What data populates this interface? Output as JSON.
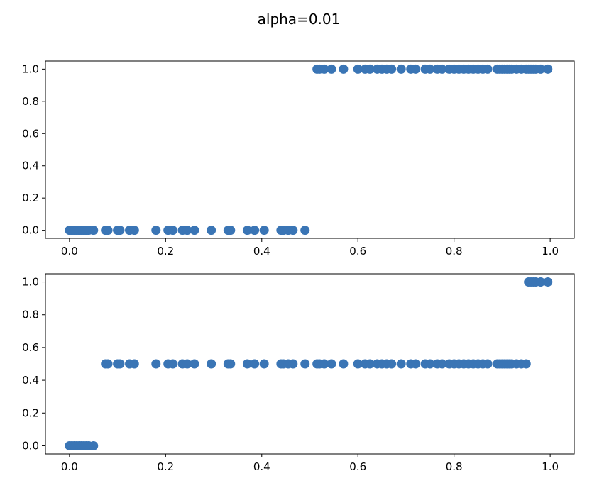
{
  "figure": {
    "suptitle": "alpha=0.01"
  },
  "chart_data": [
    {
      "type": "scatter",
      "title": "",
      "xlabel": "",
      "ylabel": "",
      "xlim": [
        -0.05,
        1.05
      ],
      "ylim": [
        -0.05,
        1.05
      ],
      "xticks": [
        0.0,
        0.2,
        0.4,
        0.6,
        0.8,
        1.0
      ],
      "xtick_labels": [
        "0.0",
        "0.2",
        "0.4",
        "0.6",
        "0.8",
        "1.0"
      ],
      "yticks": [
        0.0,
        0.2,
        0.4,
        0.6,
        0.8,
        1.0
      ],
      "ytick_labels": [
        "0.0",
        "0.2",
        "0.4",
        "0.6",
        "0.8",
        "1.0"
      ],
      "grid": false,
      "marker_color": "#3a75b5",
      "series": [
        {
          "x": [
            0.0,
            0.005,
            0.01,
            0.015,
            0.02,
            0.025,
            0.03,
            0.035,
            0.04,
            0.05,
            0.075,
            0.08,
            0.1,
            0.105,
            0.125,
            0.135,
            0.18,
            0.205,
            0.215,
            0.235,
            0.245,
            0.26,
            0.295,
            0.33,
            0.335,
            0.37,
            0.385,
            0.405,
            0.44,
            0.445,
            0.455,
            0.465,
            0.49,
            0.515,
            0.52,
            0.53,
            0.545,
            0.57,
            0.6,
            0.615,
            0.625,
            0.64,
            0.65,
            0.66,
            0.67,
            0.69,
            0.71,
            0.72,
            0.74,
            0.75,
            0.765,
            0.775,
            0.79,
            0.8,
            0.81,
            0.82,
            0.83,
            0.84,
            0.85,
            0.86,
            0.87,
            0.89,
            0.895,
            0.9,
            0.905,
            0.91,
            0.915,
            0.92,
            0.93,
            0.94,
            0.95,
            0.955,
            0.96,
            0.965,
            0.97,
            0.98,
            0.995
          ],
          "y": [
            0,
            0,
            0,
            0,
            0,
            0,
            0,
            0,
            0,
            0,
            0,
            0,
            0,
            0,
            0,
            0,
            0,
            0,
            0,
            0,
            0,
            0,
            0,
            0,
            0,
            0,
            0,
            0,
            0,
            0,
            0,
            0,
            0,
            1,
            1,
            1,
            1,
            1,
            1,
            1,
            1,
            1,
            1,
            1,
            1,
            1,
            1,
            1,
            1,
            1,
            1,
            1,
            1,
            1,
            1,
            1,
            1,
            1,
            1,
            1,
            1,
            1,
            1,
            1,
            1,
            1,
            1,
            1,
            1,
            1,
            1,
            1,
            1,
            1,
            1,
            1,
            1
          ]
        }
      ]
    },
    {
      "type": "scatter",
      "title": "",
      "xlabel": "",
      "ylabel": "",
      "xlim": [
        -0.05,
        1.05
      ],
      "ylim": [
        -0.05,
        1.05
      ],
      "xticks": [
        0.0,
        0.2,
        0.4,
        0.6,
        0.8,
        1.0
      ],
      "xtick_labels": [
        "0.0",
        "0.2",
        "0.4",
        "0.6",
        "0.8",
        "1.0"
      ],
      "yticks": [
        0.0,
        0.2,
        0.4,
        0.6,
        0.8,
        1.0
      ],
      "ytick_labels": [
        "0.0",
        "0.2",
        "0.4",
        "0.6",
        "0.8",
        "1.0"
      ],
      "grid": false,
      "marker_color": "#3a75b5",
      "series": [
        {
          "x": [
            0.0,
            0.005,
            0.01,
            0.015,
            0.02,
            0.025,
            0.03,
            0.035,
            0.04,
            0.05,
            0.075,
            0.08,
            0.1,
            0.105,
            0.125,
            0.135,
            0.18,
            0.205,
            0.215,
            0.235,
            0.245,
            0.26,
            0.295,
            0.33,
            0.335,
            0.37,
            0.385,
            0.405,
            0.44,
            0.445,
            0.455,
            0.465,
            0.49,
            0.515,
            0.52,
            0.53,
            0.545,
            0.57,
            0.6,
            0.615,
            0.625,
            0.64,
            0.65,
            0.66,
            0.67,
            0.69,
            0.71,
            0.72,
            0.74,
            0.75,
            0.765,
            0.775,
            0.79,
            0.8,
            0.81,
            0.82,
            0.83,
            0.84,
            0.85,
            0.86,
            0.87,
            0.89,
            0.895,
            0.9,
            0.905,
            0.91,
            0.915,
            0.92,
            0.93,
            0.94,
            0.95,
            0.955,
            0.96,
            0.965,
            0.97,
            0.98,
            0.995
          ],
          "y": [
            0,
            0,
            0,
            0,
            0,
            0,
            0,
            0,
            0,
            0,
            0.5,
            0.5,
            0.5,
            0.5,
            0.5,
            0.5,
            0.5,
            0.5,
            0.5,
            0.5,
            0.5,
            0.5,
            0.5,
            0.5,
            0.5,
            0.5,
            0.5,
            0.5,
            0.5,
            0.5,
            0.5,
            0.5,
            0.5,
            0.5,
            0.5,
            0.5,
            0.5,
            0.5,
            0.5,
            0.5,
            0.5,
            0.5,
            0.5,
            0.5,
            0.5,
            0.5,
            0.5,
            0.5,
            0.5,
            0.5,
            0.5,
            0.5,
            0.5,
            0.5,
            0.5,
            0.5,
            0.5,
            0.5,
            0.5,
            0.5,
            0.5,
            0.5,
            0.5,
            0.5,
            0.5,
            0.5,
            0.5,
            0.5,
            0.5,
            0.5,
            0.5,
            1,
            1,
            1,
            1,
            1,
            1
          ]
        }
      ]
    }
  ]
}
